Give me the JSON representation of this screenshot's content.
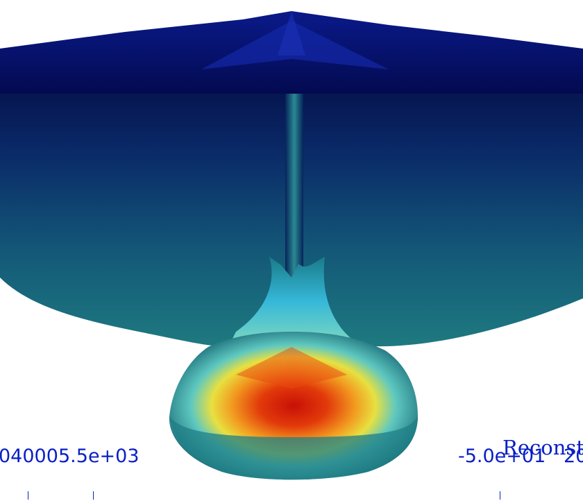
{
  "colorbar_left": {
    "tick_labels": [
      "04000",
      "5.5e+03"
    ]
  },
  "colorbar_right": {
    "title": "Reconst",
    "tick_labels": [
      "-5.0e+01",
      "20"
    ]
  },
  "colors": {
    "label": "#0a1fc4",
    "colormap": [
      "#00008a",
      "#0a3a7a",
      "#1a7a80",
      "#33c2c8",
      "#f5e03a",
      "#f07a10",
      "#d41a0a"
    ]
  }
}
